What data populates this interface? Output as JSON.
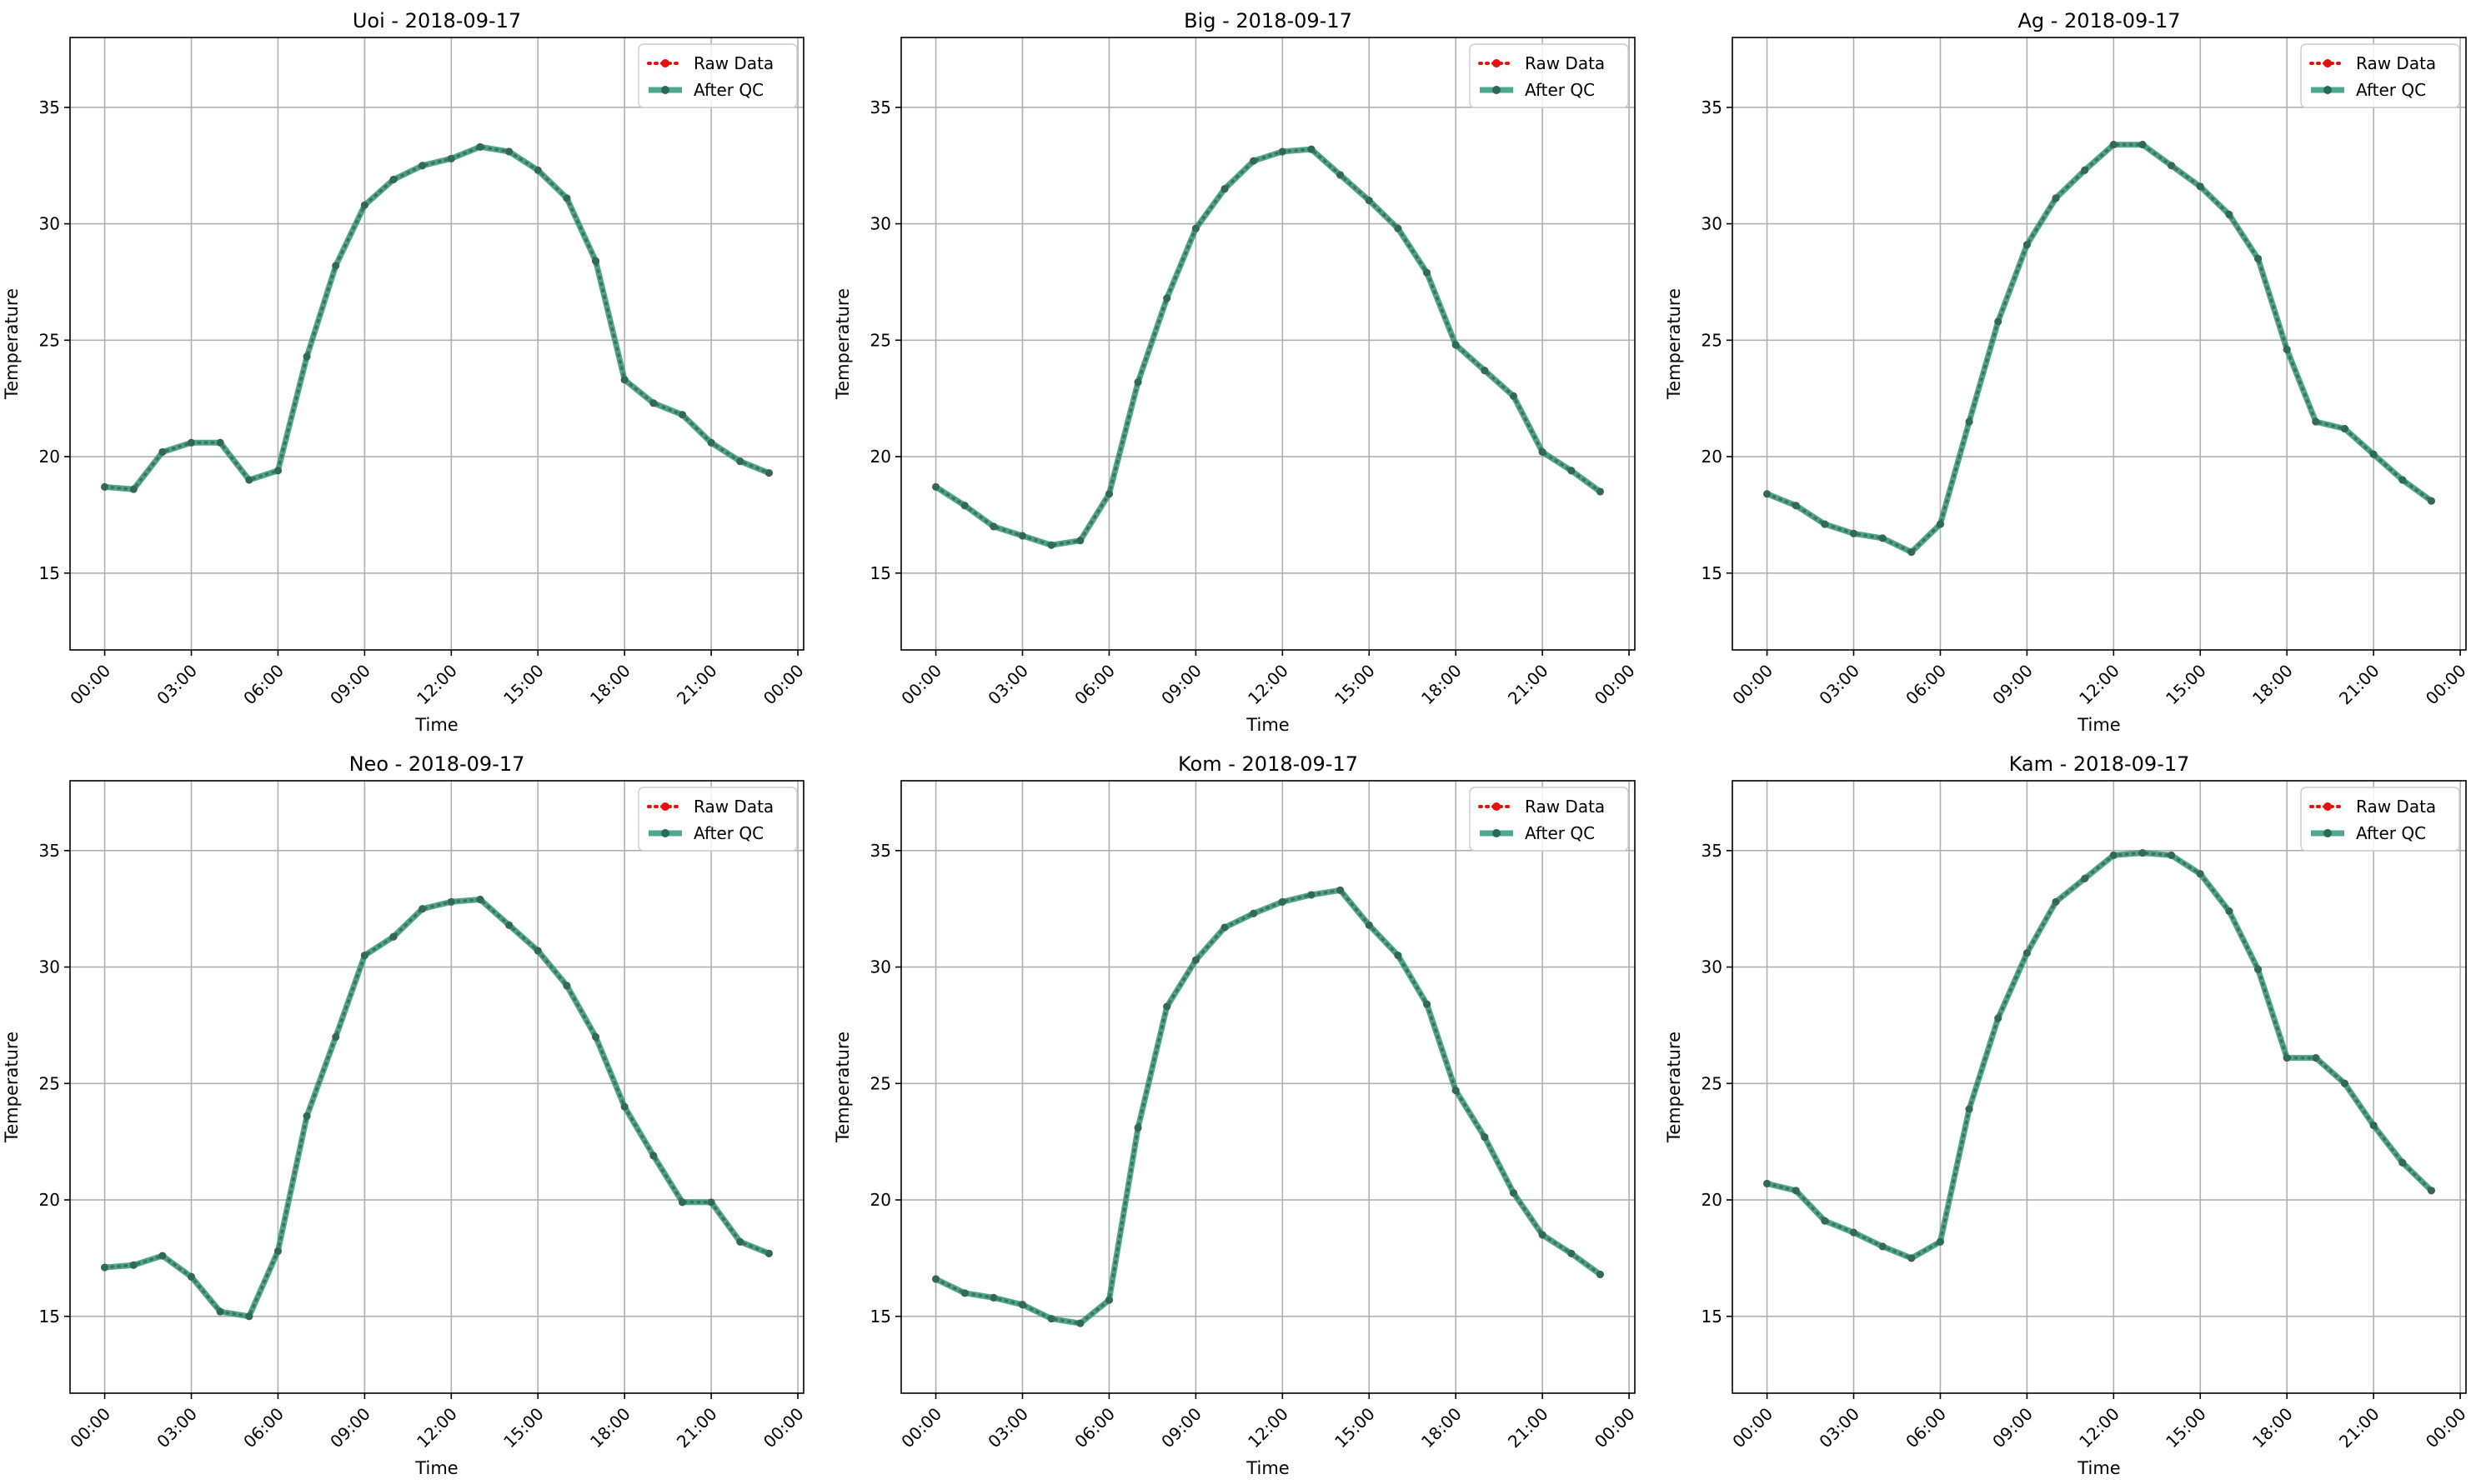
{
  "figure": {
    "legend_labels": {
      "raw": "Raw Data",
      "qc": "After QC"
    },
    "colors": {
      "raw": "#e8100f",
      "qc": "#2e9979",
      "grid": "#b0b0b0",
      "axes": "#000000"
    }
  },
  "chart_data": [
    {
      "type": "line",
      "title": "Uoi - 2018-09-17",
      "xlabel": "Time",
      "ylabel": "Temperature",
      "xlim": [
        -1.2,
        24.2
      ],
      "ylim": [
        11.7,
        38.0
      ],
      "xticks": [
        "00:00",
        "03:00",
        "06:00",
        "09:00",
        "12:00",
        "15:00",
        "18:00",
        "21:00",
        "00:00"
      ],
      "yticks": [
        15,
        20,
        25,
        30,
        35
      ],
      "grid": true,
      "legend": "upper-right",
      "x": [
        "00:00",
        "01:00",
        "02:00",
        "03:00",
        "04:00",
        "05:00",
        "06:00",
        "07:00",
        "08:00",
        "09:00",
        "10:00",
        "11:00",
        "12:00",
        "13:00",
        "14:00",
        "15:00",
        "16:00",
        "17:00",
        "18:00",
        "19:00",
        "20:00",
        "21:00",
        "22:00",
        "23:00"
      ],
      "series": [
        {
          "name": "Raw Data",
          "values": [
            18.7,
            18.6,
            20.2,
            20.6,
            20.6,
            19.0,
            19.4,
            24.3,
            28.2,
            30.8,
            31.9,
            32.5,
            32.8,
            33.3,
            33.1,
            32.3,
            31.1,
            28.4,
            23.3,
            22.3,
            21.8,
            20.6,
            19.8,
            19.3
          ]
        },
        {
          "name": "After QC",
          "values": [
            18.7,
            18.6,
            20.2,
            20.6,
            20.6,
            19.0,
            19.4,
            24.3,
            28.2,
            30.8,
            31.9,
            32.5,
            32.8,
            33.3,
            33.1,
            32.3,
            31.1,
            28.4,
            23.3,
            22.3,
            21.8,
            20.6,
            19.8,
            19.3
          ]
        }
      ]
    },
    {
      "type": "line",
      "title": "Big - 2018-09-17",
      "xlabel": "Time",
      "ylabel": "Temperature",
      "xlim": [
        -1.2,
        24.2
      ],
      "ylim": [
        11.7,
        38.0
      ],
      "xticks": [
        "00:00",
        "03:00",
        "06:00",
        "09:00",
        "12:00",
        "15:00",
        "18:00",
        "21:00",
        "00:00"
      ],
      "yticks": [
        15,
        20,
        25,
        30,
        35
      ],
      "grid": true,
      "legend": "upper-right",
      "x": [
        "00:00",
        "01:00",
        "02:00",
        "03:00",
        "04:00",
        "05:00",
        "06:00",
        "07:00",
        "08:00",
        "09:00",
        "10:00",
        "11:00",
        "12:00",
        "13:00",
        "14:00",
        "15:00",
        "16:00",
        "17:00",
        "18:00",
        "19:00",
        "20:00",
        "21:00",
        "22:00",
        "23:00"
      ],
      "series": [
        {
          "name": "Raw Data",
          "values": [
            18.7,
            17.9,
            17.0,
            16.6,
            16.2,
            16.4,
            18.4,
            23.2,
            26.8,
            29.8,
            31.5,
            32.7,
            33.1,
            33.2,
            32.1,
            31.0,
            29.8,
            27.9,
            24.8,
            23.7,
            22.6,
            20.2,
            19.4,
            18.5
          ]
        },
        {
          "name": "After QC",
          "values": [
            18.7,
            17.9,
            17.0,
            16.6,
            16.2,
            16.4,
            18.4,
            23.2,
            26.8,
            29.8,
            31.5,
            32.7,
            33.1,
            33.2,
            32.1,
            31.0,
            29.8,
            27.9,
            24.8,
            23.7,
            22.6,
            20.2,
            19.4,
            18.5
          ]
        }
      ]
    },
    {
      "type": "line",
      "title": "Ag - 2018-09-17",
      "xlabel": "Time",
      "ylabel": "Temperature",
      "xlim": [
        -1.2,
        24.2
      ],
      "ylim": [
        11.7,
        38.0
      ],
      "xticks": [
        "00:00",
        "03:00",
        "06:00",
        "09:00",
        "12:00",
        "15:00",
        "18:00",
        "21:00",
        "00:00"
      ],
      "yticks": [
        15,
        20,
        25,
        30,
        35
      ],
      "grid": true,
      "legend": "upper-right",
      "x": [
        "00:00",
        "01:00",
        "02:00",
        "03:00",
        "04:00",
        "05:00",
        "06:00",
        "07:00",
        "08:00",
        "09:00",
        "10:00",
        "11:00",
        "12:00",
        "13:00",
        "14:00",
        "15:00",
        "16:00",
        "17:00",
        "18:00",
        "19:00",
        "20:00",
        "21:00",
        "22:00",
        "23:00"
      ],
      "series": [
        {
          "name": "Raw Data",
          "values": [
            18.4,
            17.9,
            17.1,
            16.7,
            16.5,
            15.9,
            17.1,
            21.5,
            25.8,
            29.1,
            31.1,
            32.3,
            33.4,
            33.4,
            32.5,
            31.6,
            30.4,
            28.5,
            24.6,
            21.5,
            21.2,
            20.1,
            19.0,
            18.1
          ]
        },
        {
          "name": "After QC",
          "values": [
            18.4,
            17.9,
            17.1,
            16.7,
            16.5,
            15.9,
            17.1,
            21.5,
            25.8,
            29.1,
            31.1,
            32.3,
            33.4,
            33.4,
            32.5,
            31.6,
            30.4,
            28.5,
            24.6,
            21.5,
            21.2,
            20.1,
            19.0,
            18.1
          ]
        }
      ]
    },
    {
      "type": "line",
      "title": "Neo - 2018-09-17",
      "xlabel": "Time",
      "ylabel": "Temperature",
      "xlim": [
        -1.2,
        24.2
      ],
      "ylim": [
        11.7,
        38.0
      ],
      "xticks": [
        "00:00",
        "03:00",
        "06:00",
        "09:00",
        "12:00",
        "15:00",
        "18:00",
        "21:00",
        "00:00"
      ],
      "yticks": [
        15,
        20,
        25,
        30,
        35
      ],
      "grid": true,
      "legend": "upper-right",
      "x": [
        "00:00",
        "01:00",
        "02:00",
        "03:00",
        "04:00",
        "05:00",
        "06:00",
        "07:00",
        "08:00",
        "09:00",
        "10:00",
        "11:00",
        "12:00",
        "13:00",
        "14:00",
        "15:00",
        "16:00",
        "17:00",
        "18:00",
        "19:00",
        "20:00",
        "21:00",
        "22:00",
        "23:00"
      ],
      "series": [
        {
          "name": "Raw Data",
          "values": [
            17.1,
            17.2,
            17.6,
            16.7,
            15.2,
            15.0,
            17.8,
            23.6,
            27.0,
            30.5,
            31.3,
            32.5,
            32.8,
            32.9,
            31.8,
            30.7,
            29.2,
            27.0,
            24.0,
            21.9,
            19.9,
            19.9,
            18.2,
            17.7
          ]
        },
        {
          "name": "After QC",
          "values": [
            17.1,
            17.2,
            17.6,
            16.7,
            15.2,
            15.0,
            17.8,
            23.6,
            27.0,
            30.5,
            31.3,
            32.5,
            32.8,
            32.9,
            31.8,
            30.7,
            29.2,
            27.0,
            24.0,
            21.9,
            19.9,
            19.9,
            18.2,
            17.7
          ]
        }
      ]
    },
    {
      "type": "line",
      "title": "Kom - 2018-09-17",
      "xlabel": "Time",
      "ylabel": "Temperature",
      "xlim": [
        -1.2,
        24.2
      ],
      "ylim": [
        11.7,
        38.0
      ],
      "xticks": [
        "00:00",
        "03:00",
        "06:00",
        "09:00",
        "12:00",
        "15:00",
        "18:00",
        "21:00",
        "00:00"
      ],
      "yticks": [
        15,
        20,
        25,
        30,
        35
      ],
      "grid": true,
      "legend": "upper-right",
      "x": [
        "00:00",
        "01:00",
        "02:00",
        "03:00",
        "04:00",
        "05:00",
        "06:00",
        "07:00",
        "08:00",
        "09:00",
        "10:00",
        "11:00",
        "12:00",
        "13:00",
        "14:00",
        "15:00",
        "16:00",
        "17:00",
        "18:00",
        "19:00",
        "20:00",
        "21:00",
        "22:00",
        "23:00"
      ],
      "series": [
        {
          "name": "Raw Data",
          "values": [
            16.6,
            16.0,
            15.8,
            15.5,
            14.9,
            14.7,
            15.7,
            23.1,
            28.3,
            30.3,
            31.7,
            32.3,
            32.8,
            33.1,
            33.3,
            31.8,
            30.5,
            28.4,
            24.7,
            22.7,
            20.3,
            18.5,
            17.7,
            16.8
          ]
        },
        {
          "name": "After QC",
          "values": [
            16.6,
            16.0,
            15.8,
            15.5,
            14.9,
            14.7,
            15.7,
            23.1,
            28.3,
            30.3,
            31.7,
            32.3,
            32.8,
            33.1,
            33.3,
            31.8,
            30.5,
            28.4,
            24.7,
            22.7,
            20.3,
            18.5,
            17.7,
            16.8
          ]
        }
      ]
    },
    {
      "type": "line",
      "title": "Kam - 2018-09-17",
      "xlabel": "Time",
      "ylabel": "Temperature",
      "xlim": [
        -1.2,
        24.2
      ],
      "ylim": [
        11.7,
        38.0
      ],
      "xticks": [
        "00:00",
        "03:00",
        "06:00",
        "09:00",
        "12:00",
        "15:00",
        "18:00",
        "21:00",
        "00:00"
      ],
      "yticks": [
        15,
        20,
        25,
        30,
        35
      ],
      "grid": true,
      "legend": "upper-right",
      "x": [
        "00:00",
        "01:00",
        "02:00",
        "03:00",
        "04:00",
        "05:00",
        "06:00",
        "07:00",
        "08:00",
        "09:00",
        "10:00",
        "11:00",
        "12:00",
        "13:00",
        "14:00",
        "15:00",
        "16:00",
        "17:00",
        "18:00",
        "19:00",
        "20:00",
        "21:00",
        "22:00",
        "23:00"
      ],
      "series": [
        {
          "name": "Raw Data",
          "values": [
            20.7,
            20.4,
            19.1,
            18.6,
            18.0,
            17.5,
            18.2,
            23.9,
            27.8,
            30.6,
            32.8,
            33.8,
            34.8,
            34.9,
            34.8,
            34.0,
            32.4,
            29.9,
            26.1,
            26.1,
            25.0,
            23.2,
            21.6,
            20.4
          ]
        },
        {
          "name": "After QC",
          "values": [
            20.7,
            20.4,
            19.1,
            18.6,
            18.0,
            17.5,
            18.2,
            23.9,
            27.8,
            30.6,
            32.8,
            33.8,
            34.8,
            34.9,
            34.8,
            34.0,
            32.4,
            29.9,
            26.1,
            26.1,
            25.0,
            23.2,
            21.6,
            20.4
          ]
        }
      ]
    }
  ]
}
